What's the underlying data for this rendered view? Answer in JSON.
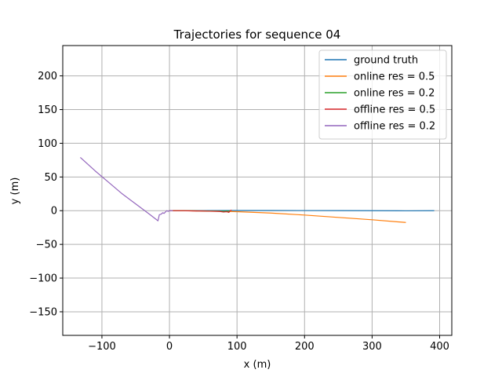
{
  "chart_data": {
    "type": "line",
    "title": "Trajectories for sequence 04",
    "xlabel": "x (m)",
    "ylabel": "y (m)",
    "xlim": [
      -158,
      418
    ],
    "ylim": [
      -185,
      245
    ],
    "xticks": [
      -100,
      0,
      100,
      200,
      300,
      400
    ],
    "yticks": [
      -150,
      -100,
      -50,
      0,
      50,
      100,
      150,
      200
    ],
    "xtick_labels": [
      "−100",
      "0",
      "100",
      "200",
      "300",
      "400"
    ],
    "ytick_labels": [
      "−150",
      "−100",
      "−50",
      "0",
      "50",
      "100",
      "150",
      "200"
    ],
    "grid": true,
    "legend_position": "top-right",
    "series": [
      {
        "name": "ground truth",
        "color": "#1f77b4",
        "points": [
          [
            0,
            0
          ],
          [
            50,
            0.2
          ],
          [
            100,
            0.3
          ],
          [
            150,
            0.3
          ],
          [
            200,
            0.2
          ],
          [
            250,
            0.1
          ],
          [
            300,
            0
          ],
          [
            350,
            -0.2
          ],
          [
            392,
            0
          ]
        ]
      },
      {
        "name": "online res = 0.5",
        "color": "#ff7f0e",
        "points": [
          [
            0,
            0
          ],
          [
            50,
            -0.3
          ],
          [
            100,
            -1.5
          ],
          [
            150,
            -3.5
          ],
          [
            200,
            -6.5
          ],
          [
            250,
            -10
          ],
          [
            300,
            -13.5
          ],
          [
            350,
            -17.5
          ]
        ]
      },
      {
        "name": "online res = 0.2",
        "color": "#2ca02c",
        "points": [
          [
            0,
            0
          ],
          [
            20,
            0
          ],
          [
            40,
            -0.3
          ],
          [
            60,
            -0.6
          ],
          [
            80,
            -0.9
          ],
          [
            90,
            -0.5
          ]
        ]
      },
      {
        "name": "offline res = 0.5",
        "color": "#d62728",
        "points": [
          [
            0,
            0
          ],
          [
            20,
            0
          ],
          [
            40,
            -0.4
          ],
          [
            60,
            -0.8
          ],
          [
            75,
            -1.2
          ],
          [
            80,
            -2
          ],
          [
            85,
            -1.5
          ],
          [
            88,
            -2.5
          ],
          [
            90,
            0
          ],
          [
            92,
            1
          ]
        ]
      },
      {
        "name": "offline res = 0.2",
        "color": "#9467bd",
        "points": [
          [
            -132,
            79
          ],
          [
            -110,
            59
          ],
          [
            -90,
            42
          ],
          [
            -70,
            25
          ],
          [
            -50,
            10
          ],
          [
            -30,
            -5
          ],
          [
            -17,
            -15
          ],
          [
            -15,
            -6
          ],
          [
            -12,
            -5
          ],
          [
            -10,
            -3
          ],
          [
            -8,
            -4
          ],
          [
            -6,
            -2
          ],
          [
            -4,
            0
          ],
          [
            -2,
            -1
          ],
          [
            0,
            0
          ],
          [
            2,
            0
          ],
          [
            5,
            0
          ]
        ]
      }
    ]
  }
}
